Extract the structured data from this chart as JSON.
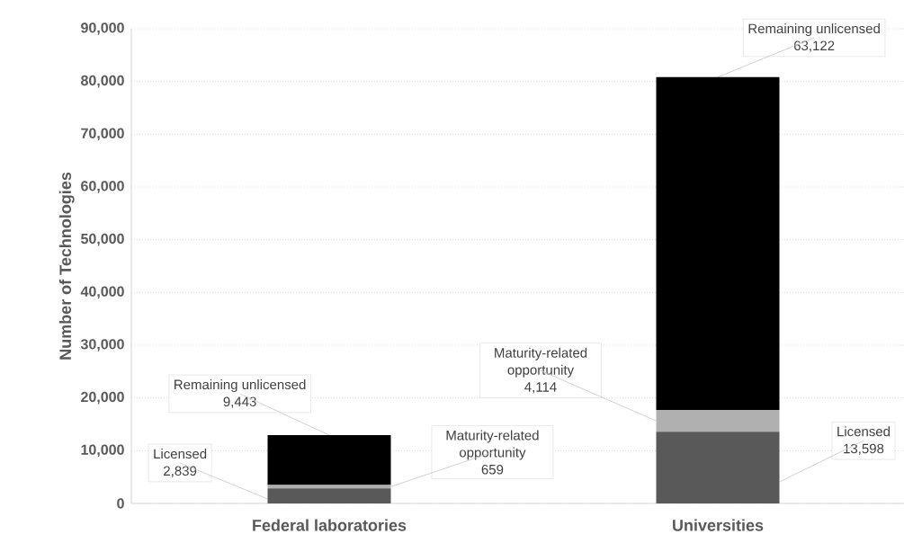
{
  "chart_data": {
    "type": "bar",
    "stacked": true,
    "ylabel": "Number of Technologies",
    "categories": [
      "Federal laboratories",
      "Universities"
    ],
    "series": [
      {
        "name": "Licensed",
        "color": "#595959",
        "values": [
          2839,
          13598
        ],
        "value_labels": [
          "2,839",
          "13,598"
        ]
      },
      {
        "name": "Maturity-related opportunity",
        "color": "#b0b0b0",
        "values": [
          659,
          4114
        ],
        "value_labels": [
          "659",
          "4,114"
        ]
      },
      {
        "name": "Remaining unlicensed",
        "color": "#000000",
        "values": [
          9443,
          63122
        ],
        "value_labels": [
          "9,443",
          "63,122"
        ]
      }
    ],
    "ylim": [
      0,
      90000
    ],
    "yticks": [
      {
        "value": 0,
        "label": "0"
      },
      {
        "value": 10000,
        "label": "10,000"
      },
      {
        "value": 20000,
        "label": "20,000"
      },
      {
        "value": 30000,
        "label": "30,000"
      },
      {
        "value": 40000,
        "label": "40,000"
      },
      {
        "value": 50000,
        "label": "50,000"
      },
      {
        "value": 60000,
        "label": "60,000"
      },
      {
        "value": 70000,
        "label": "70,000"
      },
      {
        "value": 80000,
        "label": "80,000"
      },
      {
        "value": 90000,
        "label": "90,000"
      }
    ],
    "grid": "y"
  }
}
